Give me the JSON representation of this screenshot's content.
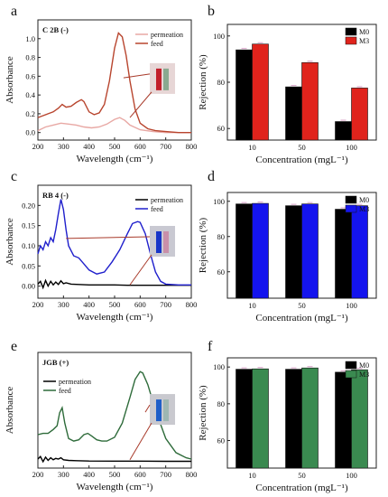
{
  "chart_data": [
    {
      "panel_letter": "a",
      "type": "line",
      "title": "C 2B (-)",
      "xlabel": "Wavelength (cm⁻¹)",
      "ylabel": "Absorbance",
      "xlim": [
        200,
        800
      ],
      "ylim": [
        -0.08,
        1.2
      ],
      "xticks": [
        200,
        300,
        400,
        500,
        600,
        700,
        800
      ],
      "yticks": [
        0.0,
        0.2,
        0.4,
        0.6,
        0.8,
        1.0
      ],
      "ytick_labels": [
        "0.0",
        "0.2",
        "0.4",
        "0.6",
        "0.8",
        "1.0"
      ],
      "grid": false,
      "legend": "top-right",
      "series": [
        {
          "name": "permeation",
          "color": "#e8a8a4",
          "x": [
            200,
            230,
            260,
            290,
            320,
            350,
            380,
            410,
            440,
            470,
            500,
            520,
            540,
            560,
            600,
            650,
            700,
            750,
            800
          ],
          "y": [
            0.02,
            0.06,
            0.08,
            0.1,
            0.09,
            0.08,
            0.06,
            0.05,
            0.06,
            0.09,
            0.14,
            0.16,
            0.13,
            0.08,
            0.03,
            0.01,
            0.0,
            0.0,
            0.0
          ]
        },
        {
          "name": "feed",
          "color": "#b8452e",
          "x": [
            200,
            220,
            240,
            260,
            280,
            295,
            310,
            330,
            350,
            370,
            380,
            400,
            420,
            440,
            460,
            480,
            500,
            515,
            530,
            545,
            560,
            580,
            600,
            630,
            660,
            700,
            750,
            800
          ],
          "y": [
            0.16,
            0.18,
            0.2,
            0.22,
            0.26,
            0.3,
            0.27,
            0.28,
            0.32,
            0.35,
            0.33,
            0.22,
            0.19,
            0.21,
            0.3,
            0.55,
            0.9,
            1.06,
            1.02,
            0.82,
            0.55,
            0.25,
            0.1,
            0.04,
            0.02,
            0.01,
            0.0,
            0.0
          ]
        }
      ],
      "arrow_label": ""
    },
    {
      "panel_letter": "b",
      "type": "bar",
      "xlabel": "Concentration (mgL⁻¹)",
      "ylabel": "Rejection (%)",
      "ylim": [
        55,
        105
      ],
      "yticks": [
        60,
        80,
        100
      ],
      "categories": [
        "10",
        "50",
        "100"
      ],
      "legend": "top-right",
      "series": [
        {
          "name": "M0",
          "color": "#000000",
          "values": [
            94.0,
            78.0,
            63.0
          ]
        },
        {
          "name": "M3",
          "color": "#e0231c",
          "values": [
            96.5,
            88.5,
            77.5
          ]
        }
      ]
    },
    {
      "panel_letter": "c",
      "type": "line",
      "title": "RB 4 (-)",
      "xlabel": "Wavelength (cm⁻¹)",
      "ylabel": "Absorbance",
      "xlim": [
        200,
        800
      ],
      "ylim": [
        -0.03,
        0.25
      ],
      "xticks": [
        200,
        300,
        400,
        500,
        600,
        700,
        800
      ],
      "yticks": [
        0.0,
        0.05,
        0.1,
        0.15,
        0.2
      ],
      "ytick_labels": [
        "0.00",
        "0.05",
        "0.10",
        "0.15",
        "0.20"
      ],
      "grid": false,
      "legend": "top-right",
      "series": [
        {
          "name": "permeation",
          "color": "#000000",
          "x": [
            200,
            210,
            220,
            230,
            240,
            250,
            260,
            270,
            280,
            290,
            300,
            310,
            330,
            360,
            400,
            450,
            500,
            550,
            600,
            650,
            700,
            750,
            800
          ],
          "y": [
            0.005,
            0.012,
            -0.004,
            0.014,
            0.0,
            0.012,
            0.003,
            0.01,
            0.004,
            0.013,
            0.006,
            0.008,
            0.005,
            0.004,
            0.003,
            0.003,
            0.003,
            0.002,
            0.002,
            0.002,
            0.002,
            0.002,
            0.002
          ]
        },
        {
          "name": "feed",
          "color": "#1f1fcc",
          "x": [
            200,
            210,
            220,
            230,
            240,
            250,
            260,
            270,
            280,
            290,
            300,
            310,
            320,
            340,
            360,
            380,
            400,
            430,
            460,
            490,
            520,
            550,
            570,
            590,
            600,
            620,
            640,
            660,
            680,
            700,
            750,
            800
          ],
          "y": [
            0.08,
            0.1,
            0.09,
            0.11,
            0.1,
            0.12,
            0.11,
            0.14,
            0.18,
            0.215,
            0.19,
            0.14,
            0.1,
            0.075,
            0.07,
            0.055,
            0.04,
            0.03,
            0.035,
            0.06,
            0.09,
            0.13,
            0.155,
            0.16,
            0.158,
            0.13,
            0.08,
            0.035,
            0.012,
            0.005,
            0.003,
            0.003
          ]
        }
      ],
      "arrow_label": ""
    },
    {
      "panel_letter": "d",
      "type": "bar",
      "xlabel": "Concentration (mgL⁻¹)",
      "ylabel": "Rejection (%)",
      "ylim": [
        45,
        105
      ],
      "yticks": [
        60,
        80,
        100
      ],
      "categories": [
        "10",
        "50",
        "100"
      ],
      "legend": "top-right",
      "series": [
        {
          "name": "M0",
          "color": "#000000",
          "values": [
            98.5,
            97.5,
            95.5
          ]
        },
        {
          "name": "M3",
          "color": "#1414ee",
          "values": [
            98.8,
            98.5,
            97.5
          ]
        }
      ]
    },
    {
      "panel_letter": "e",
      "type": "line",
      "title": "JGB (+)",
      "xlabel": "Wavelength (cm⁻¹)",
      "ylabel": "Absorbance",
      "xlim": [
        200,
        800
      ],
      "ylim": [
        -0.05,
        0.85
      ],
      "xticks": [
        200,
        300,
        400,
        500,
        600,
        700,
        800
      ],
      "yticks": [],
      "ytick_labels": [],
      "grid": false,
      "legend": "top-left",
      "series": [
        {
          "name": "permeation",
          "color": "#000000",
          "x": [
            200,
            210,
            220,
            230,
            240,
            250,
            260,
            270,
            280,
            290,
            300,
            320,
            350,
            400,
            500,
            600,
            700,
            800
          ],
          "y": [
            0.02,
            0.04,
            0.0,
            0.035,
            0.01,
            0.03,
            0.015,
            0.025,
            0.02,
            0.03,
            0.015,
            0.01,
            0.008,
            0.005,
            0.004,
            0.004,
            0.003,
            0.003
          ]
        },
        {
          "name": "feed",
          "color": "#2e6b3a",
          "x": [
            200,
            220,
            240,
            260,
            275,
            285,
            295,
            305,
            320,
            340,
            360,
            380,
            395,
            410,
            430,
            450,
            470,
            500,
            530,
            560,
            580,
            600,
            610,
            630,
            660,
            700,
            740,
            780,
            800
          ],
          "y": [
            0.21,
            0.22,
            0.22,
            0.25,
            0.28,
            0.38,
            0.42,
            0.3,
            0.18,
            0.16,
            0.17,
            0.21,
            0.22,
            0.2,
            0.17,
            0.16,
            0.16,
            0.19,
            0.3,
            0.5,
            0.64,
            0.7,
            0.69,
            0.6,
            0.4,
            0.18,
            0.07,
            0.03,
            0.02
          ]
        }
      ],
      "arrow_label": ""
    },
    {
      "panel_letter": "f",
      "type": "bar",
      "xlabel": "Concentration (mgL⁻¹)",
      "ylabel": "Rejection (%)",
      "ylim": [
        45,
        105
      ],
      "yticks": [
        60,
        80,
        100
      ],
      "categories": [
        "10",
        "50",
        "100"
      ],
      "legend": "top-right",
      "series": [
        {
          "name": "M0",
          "color": "#000000",
          "values": [
            98.8,
            98.8,
            97.2
          ]
        },
        {
          "name": "M3",
          "color": "#3a8a50",
          "values": [
            99.0,
            99.5,
            98.5
          ]
        }
      ]
    }
  ]
}
